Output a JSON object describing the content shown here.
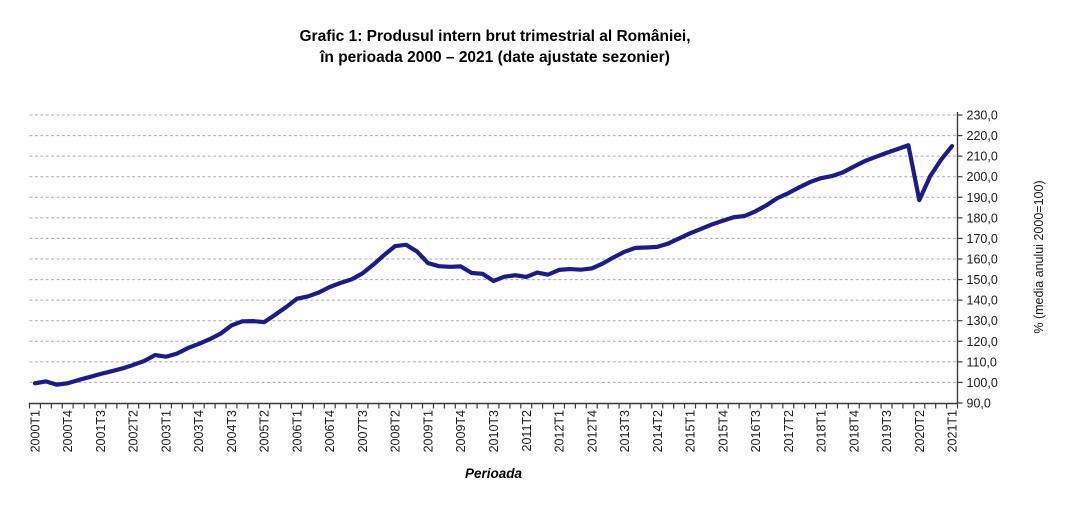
{
  "title": {
    "line1": "Grafic 1: Produsul intern brut trimestrial al României,",
    "line2": "în perioada 2000 – 2021 (date ajustate sezonier)"
  },
  "chart_data": {
    "type": "line",
    "title": "Grafic 1: Produsul intern brut trimestrial al României, în perioada 2000 – 2021 (date ajustate sezonier)",
    "xlabel": "Perioada",
    "ylabel": "% (media anului 2000=100)",
    "ylim": [
      90,
      230
    ],
    "ytick_step": 10,
    "grid": "horizontal-dashed",
    "legend": "none",
    "line_color": "#1b1b8e",
    "y_tick_labels": [
      "230,0",
      "220,0",
      "210,0",
      "200,0",
      "190,0",
      "180,0",
      "170,0",
      "160,0",
      "150,0",
      "140,0",
      "130,0",
      "120,0",
      "110,0",
      "100,0",
      "90,0"
    ],
    "x_tick_labels_shown": [
      "2000T1",
      "2000T4",
      "2001T3",
      "2002T2",
      "2003T1",
      "2003T4",
      "2004T3",
      "2005T2",
      "2006T1",
      "2006T4",
      "2007T3",
      "2008T2",
      "2009T1",
      "2009T4",
      "2010T3",
      "2011T2",
      "2012T1",
      "2012T4",
      "2013T3",
      "2014T2",
      "2015T1",
      "2015T4",
      "2016T3",
      "2017T2",
      "2018T1",
      "2018T4",
      "2019T3",
      "2020T2",
      "2021T1"
    ],
    "categories": [
      "2000T1",
      "2000T2",
      "2000T3",
      "2000T4",
      "2001T1",
      "2001T2",
      "2001T3",
      "2001T4",
      "2002T1",
      "2002T2",
      "2002T3",
      "2002T4",
      "2003T1",
      "2003T2",
      "2003T3",
      "2003T4",
      "2004T1",
      "2004T2",
      "2004T3",
      "2004T4",
      "2005T1",
      "2005T2",
      "2005T3",
      "2005T4",
      "2006T1",
      "2006T2",
      "2006T3",
      "2006T4",
      "2007T1",
      "2007T2",
      "2007T3",
      "2007T4",
      "2008T1",
      "2008T2",
      "2008T3",
      "2008T4",
      "2009T1",
      "2009T2",
      "2009T3",
      "2009T4",
      "2010T1",
      "2010T2",
      "2010T3",
      "2010T4",
      "2011T1",
      "2011T2",
      "2011T3",
      "2011T4",
      "2012T1",
      "2012T2",
      "2012T3",
      "2012T4",
      "2013T1",
      "2013T2",
      "2013T3",
      "2013T4",
      "2014T1",
      "2014T2",
      "2014T3",
      "2014T4",
      "2015T1",
      "2015T2",
      "2015T3",
      "2015T4",
      "2016T1",
      "2016T2",
      "2016T3",
      "2016T4",
      "2017T1",
      "2017T2",
      "2017T3",
      "2017T4",
      "2018T1",
      "2018T2",
      "2018T3",
      "2018T4",
      "2019T1",
      "2019T2",
      "2019T3",
      "2019T4",
      "2020T1",
      "2020T2",
      "2020T3",
      "2020T4",
      "2021T1"
    ],
    "values": [
      99.6,
      100.5,
      98.9,
      99.6,
      101.2,
      102.6,
      104.1,
      105.4,
      106.8,
      108.5,
      110.4,
      113.3,
      112.5,
      114.0,
      116.7,
      118.7,
      121.0,
      123.7,
      127.7,
      129.7,
      129.8,
      129.3,
      132.9,
      136.6,
      140.7,
      141.8,
      143.7,
      146.4,
      148.4,
      150.1,
      153.0,
      157.3,
      162.0,
      166.3,
      166.9,
      163.6,
      158.0,
      156.5,
      156.2,
      156.4,
      153.2,
      152.8,
      149.3,
      151.4,
      152.1,
      151.3,
      153.4,
      152.4,
      154.7,
      155.1,
      154.8,
      155.4,
      157.8,
      160.8,
      163.5,
      165.4,
      165.6,
      165.9,
      167.5,
      170.0,
      172.5,
      174.6,
      176.8,
      178.6,
      180.3,
      180.9,
      183.2,
      186.1,
      189.6,
      192.0,
      194.8,
      197.4,
      199.3,
      200.3,
      202.1,
      204.9,
      207.6,
      209.6,
      211.6,
      213.4,
      215.3,
      188.6,
      200.3,
      208.3,
      214.9
    ]
  }
}
